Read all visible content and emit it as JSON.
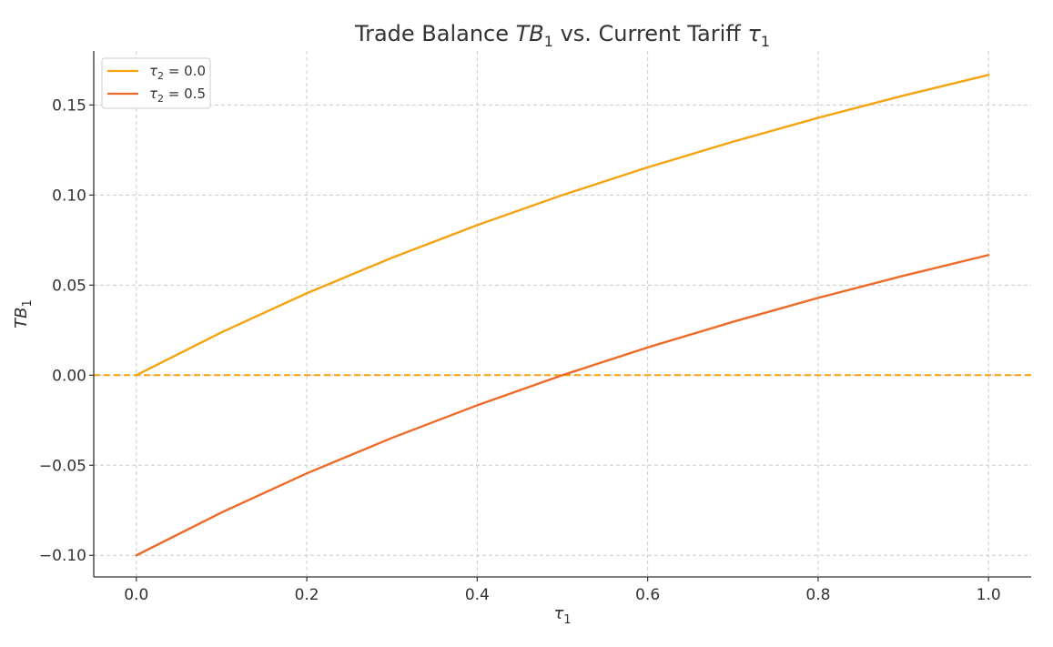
{
  "chart_data": {
    "type": "line",
    "title_parts": [
      "Trade Balance ",
      "TB",
      "1",
      " vs. Current Tariff ",
      "τ",
      "1"
    ],
    "xlabel_parts": [
      "τ",
      "1"
    ],
    "ylabel_parts": [
      "TB",
      "1"
    ],
    "xlim": [
      -0.05,
      1.05
    ],
    "ylim": [
      -0.112,
      0.18
    ],
    "x_ticks": [
      0.0,
      0.2,
      0.4,
      0.6,
      0.8,
      1.0
    ],
    "x_tick_labels": [
      "0.0",
      "0.2",
      "0.4",
      "0.6",
      "0.8",
      "1.0"
    ],
    "y_ticks": [
      -0.1,
      -0.05,
      0.0,
      0.05,
      0.1,
      0.15
    ],
    "y_tick_labels": [
      "−0.10",
      "−0.05",
      "0.00",
      "0.05",
      "0.10",
      "0.15"
    ],
    "grid": true,
    "legend_position": "top-left",
    "x": [
      0.0,
      0.1,
      0.2,
      0.3,
      0.4,
      0.5,
      0.6,
      0.7,
      0.8,
      0.9,
      1.0
    ],
    "series": [
      {
        "name_parts": [
          "τ",
          "2",
          " = 0.0"
        ],
        "color": "#f5a30f",
        "values": [
          0.0,
          0.0238,
          0.0455,
          0.0652,
          0.0833,
          0.1,
          0.1154,
          0.1296,
          0.1429,
          0.1552,
          0.1667
        ]
      },
      {
        "name_parts": [
          "τ",
          "2",
          " = 0.5"
        ],
        "color": "#ee6b27",
        "values": [
          -0.1,
          -0.0762,
          -0.0545,
          -0.0348,
          -0.0167,
          0.0,
          0.0154,
          0.0296,
          0.0429,
          0.0552,
          0.0667
        ]
      }
    ],
    "reference_line": {
      "y": 0.0,
      "style": "dashed",
      "color": "#f5a30f"
    }
  }
}
